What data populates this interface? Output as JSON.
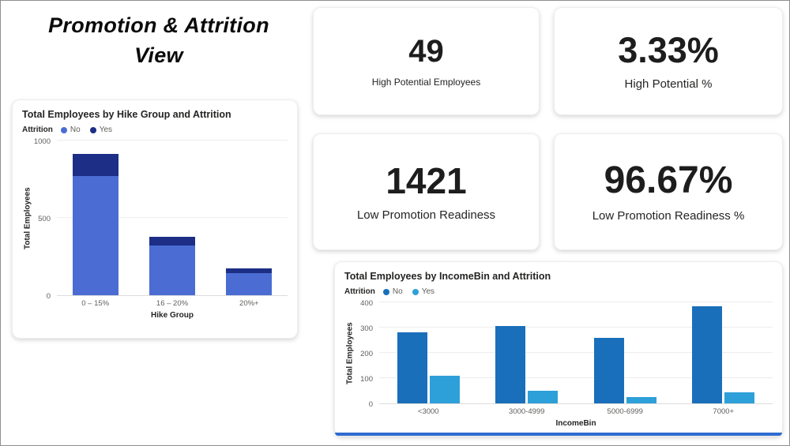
{
  "page": {
    "title_line1": "Promotion & Attrition",
    "title_line2": "View"
  },
  "kpis": [
    {
      "value": "49",
      "label": "High Potential Employees"
    },
    {
      "value": "3.33%",
      "label": "High Potential %"
    },
    {
      "value": "1421",
      "label": "Low Promotion Readiness"
    },
    {
      "value": "96.67%",
      "label": "Low Promotion Readiness %"
    }
  ],
  "colors": {
    "accent_blue": "#2e6bd0"
  },
  "chart_data": [
    {
      "type": "bar",
      "stacked": true,
      "title": "Total Employees by Hike Group and Attrition",
      "legend_title": "Attrition",
      "legend_position": "top-left",
      "categories": [
        "0 – 15%",
        "16 – 20%",
        "20%+"
      ],
      "series": [
        {
          "name": "No",
          "color": "#4a6cd3",
          "values": [
            770,
            320,
            145
          ]
        },
        {
          "name": "Yes",
          "color": "#1c2e85",
          "values": [
            145,
            60,
            30
          ]
        }
      ],
      "xlabel": "Hike Group",
      "ylabel": "Total Employees",
      "ylim": [
        0,
        1000
      ],
      "yticks": [
        0,
        500,
        1000
      ],
      "grid": true
    },
    {
      "type": "bar",
      "stacked": false,
      "title": "Total Employees by IncomeBin and Attrition",
      "legend_title": "Attrition",
      "legend_position": "top-left",
      "categories": [
        "<3000",
        "3000-4999",
        "5000-6999",
        "7000+"
      ],
      "series": [
        {
          "name": "No",
          "color": "#1a6fba",
          "values": [
            280,
            305,
            260,
            385
          ]
        },
        {
          "name": "Yes",
          "color": "#2ea0d9",
          "values": [
            110,
            50,
            25,
            45
          ]
        }
      ],
      "xlabel": "IncomeBin",
      "ylabel": "Total Employees",
      "ylim": [
        0,
        400
      ],
      "yticks": [
        0,
        100,
        200,
        300,
        400
      ],
      "grid": true
    }
  ]
}
